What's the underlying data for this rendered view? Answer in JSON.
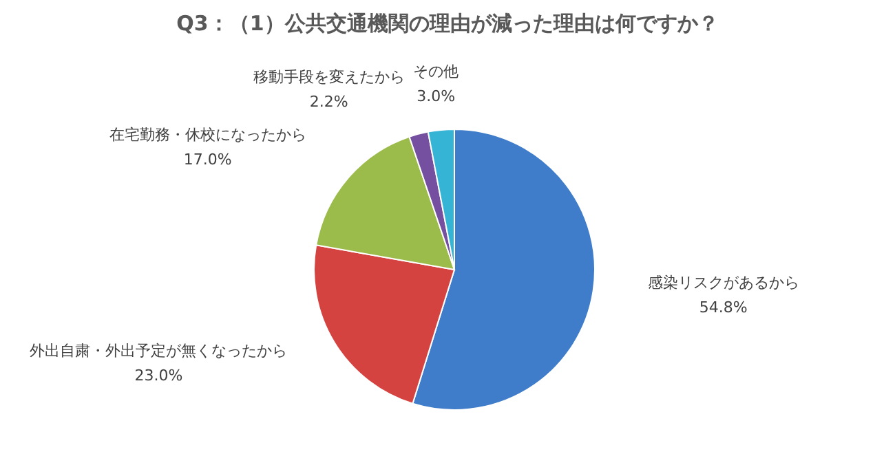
{
  "chart_data": {
    "type": "pie",
    "title": "Q3：（1）公共交通機関の理由が減った理由は何ですか？",
    "categories": [
      "感染リスクがあるから",
      "外出自粛・外出予定が無くなったから",
      "在宅勤務・休校になったから",
      "移動手段を変えたから",
      "その他"
    ],
    "values": [
      54.8,
      23.0,
      17.0,
      2.2,
      3.0
    ],
    "colors": [
      "#3f7cc9",
      "#d54340",
      "#9bbb4a",
      "#7550a0",
      "#36b4d6"
    ],
    "value_labels": [
      "54.8%",
      "23.0%",
      "17.0%",
      "2.2%",
      "3.0%"
    ]
  }
}
